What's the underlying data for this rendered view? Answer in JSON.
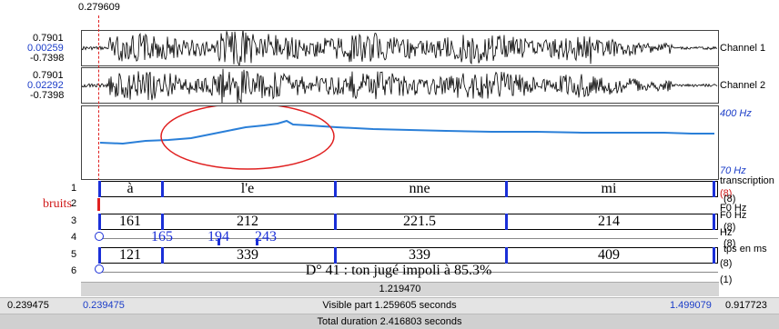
{
  "cursor": {
    "time": "0.279609"
  },
  "channels": [
    {
      "name": "Channel 1",
      "max": "0.7901",
      "value": "0.00259",
      "min": "-0.7398"
    },
    {
      "name": "Channel 2",
      "max": "0.7901",
      "value": "0.02292",
      "min": "-0.7398"
    }
  ],
  "pitch": {
    "top_label": "400 Hz",
    "bottom_label": "70 Hz"
  },
  "tiers": [
    {
      "num": "1",
      "right_label": "transcription",
      "right_count": "(8)",
      "cells": [
        "à",
        "l'e",
        "nne",
        "mi"
      ]
    },
    {
      "num": "2",
      "left_text": "bruits",
      "right_label": "F0 Hz",
      "right_count": "(8)",
      "cells": []
    },
    {
      "num": "3",
      "right_label": "F0 Hz",
      "right_count": "(8)",
      "cells": [
        "161",
        "212",
        "221.5",
        "214"
      ]
    },
    {
      "num": "4",
      "right_label": "Hz",
      "right_count": "(8)",
      "cells": [
        "165",
        "194",
        "243"
      ]
    },
    {
      "num": "5",
      "right_label": "tps en ms",
      "right_count": "(8)",
      "cells": [
        "121",
        "339",
        "339",
        "409"
      ]
    },
    {
      "num": "6",
      "right_label": "",
      "right_count": "(1)",
      "cells": [
        "D° 41 : ton jugé impoli à 85.3%"
      ]
    }
  ],
  "footer": {
    "selection_duration": "1.219470",
    "left_time": "0.239475",
    "visible_start": "0.239475",
    "visible_label": "Visible part 1.259605 seconds",
    "visible_end": "1.499079",
    "right_time": "0.917723",
    "total_label": "Total duration 2.416803 seconds"
  },
  "colors": {
    "boundary": "#1a2fd8",
    "pitch": "#2a7fd8",
    "annotation_circle": "#e02020",
    "cursor": "#e02020"
  }
}
